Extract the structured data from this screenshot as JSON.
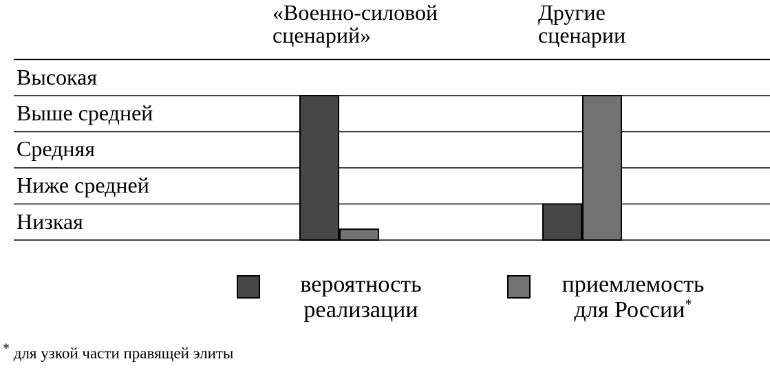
{
  "chart_data": {
    "type": "bar",
    "categories": [
      "«Военно-силовой\nсценарий»",
      "Другие\nсценарии"
    ],
    "levels": [
      "Низкая",
      "Ниже средней",
      "Средняя",
      "Выше средней",
      "Высокая"
    ],
    "ylim": [
      0,
      5
    ],
    "grid": true,
    "legend_position": "bottom",
    "series": [
      {
        "name": "вероятность\nреализации",
        "values": [
          4,
          1
        ],
        "color": "#474747"
      },
      {
        "name": "приемлемость\nдля России",
        "values": [
          0.3,
          4
        ],
        "color": "#727272"
      }
    ],
    "series_note_marker": "*",
    "footnote": {
      "marker": "*",
      "text": "для узкой части правящей элиты"
    }
  }
}
